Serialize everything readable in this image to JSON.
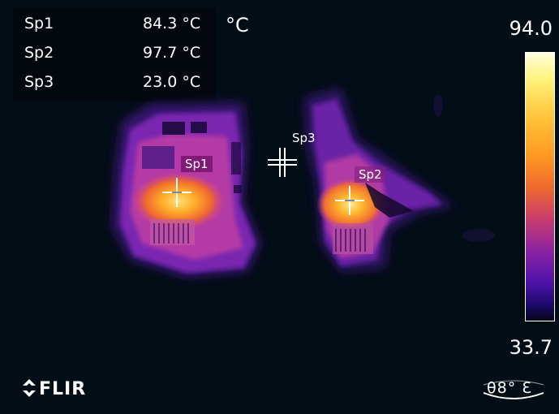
{
  "readout": {
    "unit": "°C",
    "spots": [
      {
        "label": "Sp1",
        "value": "84.3 °C"
      },
      {
        "label": "Sp2",
        "value": "97.7 °C"
      },
      {
        "label": "Sp3",
        "value": "23.0 °C"
      }
    ]
  },
  "scale": {
    "max": "94.0",
    "min": "33.7"
  },
  "markers": {
    "sp1": "Sp1",
    "sp2": "Sp2",
    "sp3": "Sp3"
  },
  "brand": {
    "logo_text": "FLIR",
    "lens_label": "θ8° Ɛ"
  },
  "colors": {
    "background": "#030d16",
    "hot": "#ffb43a",
    "warm": "#c83c8c",
    "cool": "#4c1a9c"
  }
}
